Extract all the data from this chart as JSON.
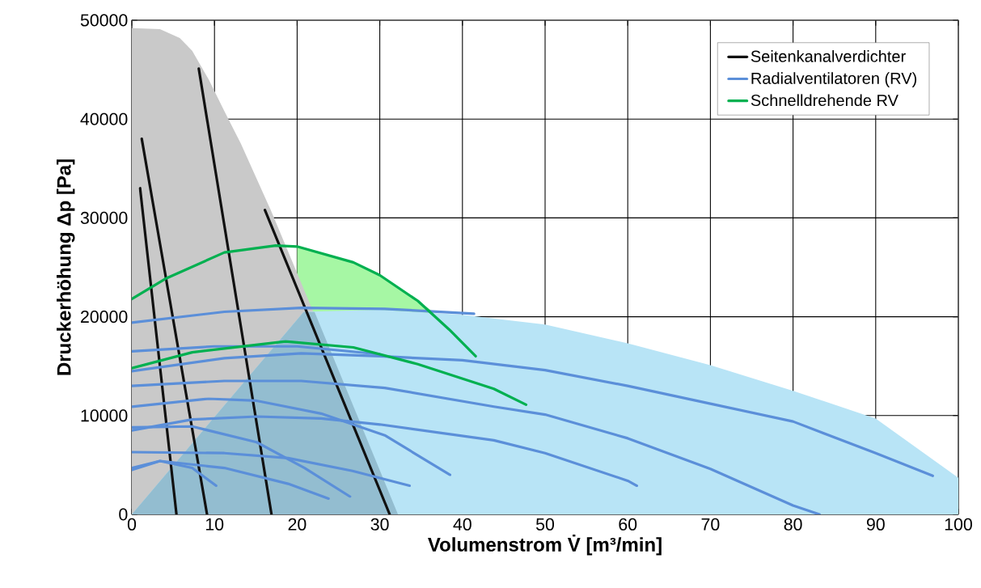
{
  "chart_data": {
    "type": "line",
    "xlabel": "Volumenstrom V̇ [m³/min]",
    "ylabel": "Druckerhöhung Δp [Pa]",
    "xlim": [
      0,
      100
    ],
    "ylim": [
      0,
      50000
    ],
    "xticks": [
      0,
      10,
      20,
      30,
      40,
      50,
      60,
      70,
      80,
      90,
      100
    ],
    "yticks": [
      0,
      10000,
      20000,
      30000,
      40000,
      50000
    ],
    "grid": true,
    "legend": "top right",
    "series": [
      {
        "type": "area",
        "color": "#a6f7a4",
        "x": [
          20,
          26.8,
          30,
          34.6,
          36.5
        ],
        "values": [
          27100,
          25500,
          24200,
          21600,
          20500
        ]
      },
      {
        "type": "area",
        "color": "#c9c9c9",
        "x": [
          0,
          3.4,
          5.8,
          7.3,
          9.3,
          11.2,
          13.2,
          16.8,
          32.2
        ],
        "values": [
          49200,
          49100,
          48200,
          46900,
          44000,
          40800,
          37500,
          30800,
          0
        ]
      },
      {
        "type": "area",
        "color": "#b8e4f6",
        "x": [
          0,
          20.8,
          30,
          40,
          50,
          60,
          70,
          80,
          90,
          100
        ],
        "values": [
          0,
          20500,
          20700,
          20200,
          19200,
          17300,
          15100,
          12500,
          9700,
          3700
        ]
      },
      {
        "type": "area",
        "color": "#93bdd0",
        "x": [
          0,
          20.8,
          22.1,
          32.2
        ],
        "values": [
          0,
          20500,
          20500,
          0
        ]
      },
      {
        "name": "Seitenkanalverdichter",
        "color": "#111111",
        "x": [
          1.0,
          5.4
        ],
        "values": [
          33000,
          0
        ]
      },
      {
        "color": "#111111",
        "x": [
          1.2,
          9.1
        ],
        "values": [
          38000,
          0
        ]
      },
      {
        "color": "#111111",
        "x": [
          8.1,
          16.9
        ],
        "values": [
          45100,
          0
        ]
      },
      {
        "color": "#111111",
        "x": [
          16.1,
          31.2
        ],
        "values": [
          30800,
          0
        ]
      },
      {
        "name": "Radialventilatoren (RV)",
        "color": "#5b8fd9",
        "x": [
          0,
          11.2,
          20.5,
          30.6,
          41.4
        ],
        "values": [
          19400,
          20500,
          20900,
          20800,
          20300
        ]
      },
      {
        "color": "#5b8fd9",
        "x": [
          0,
          10,
          20,
          30
        ],
        "values": [
          16500,
          17000,
          17000,
          16200
        ]
      },
      {
        "color": "#5b8fd9",
        "x": [
          0,
          11.2,
          20.5,
          30,
          40,
          50,
          60,
          70,
          80,
          90,
          96.9
        ],
        "values": [
          14500,
          15800,
          16300,
          16000,
          15600,
          14600,
          13000,
          11200,
          9400,
          6200,
          3900
        ]
      },
      {
        "color": "#5b8fd9",
        "x": [
          0,
          11.2,
          20.5,
          30.6,
          43.8,
          50,
          60,
          70,
          80,
          83.2
        ],
        "values": [
          13000,
          13500,
          13500,
          12800,
          10900,
          10100,
          7700,
          4600,
          900,
          0
        ]
      },
      {
        "color": "#5b8fd9",
        "x": [
          0,
          9.3,
          15.1,
          22.9,
          30.6,
          38.5
        ],
        "values": [
          10900,
          11700,
          11500,
          10200,
          8000,
          4000
        ]
      },
      {
        "color": "#5b8fd9",
        "x": [
          0,
          7.3,
          15.1,
          22.9,
          30,
          43.8,
          50,
          60,
          61.1
        ],
        "values": [
          8500,
          9600,
          9900,
          9700,
          9100,
          7500,
          6200,
          3400,
          2900
        ]
      },
      {
        "color": "#5b8fd9",
        "x": [
          0,
          7.3,
          15.1,
          20.9,
          26.4
        ],
        "values": [
          8800,
          8900,
          7300,
          4700,
          1800
        ]
      },
      {
        "color": "#5b8fd9",
        "x": [
          0,
          11.2,
          18.9,
          26.7,
          33.6
        ],
        "values": [
          6300,
          6200,
          5700,
          4400,
          2900
        ]
      },
      {
        "color": "#5b8fd9",
        "x": [
          0,
          3.4,
          11.2,
          18.9,
          23.8
        ],
        "values": [
          4700,
          5400,
          4700,
          3100,
          1600
        ]
      },
      {
        "color": "#5b8fd9",
        "x": [
          0,
          3.4,
          7.3,
          10.2
        ],
        "values": [
          4500,
          5400,
          4700,
          2900
        ]
      },
      {
        "name": "Schnelldrehende RV",
        "color": "#00b050",
        "x": [
          0,
          4.2,
          11.2,
          17.4,
          20,
          26.8,
          30,
          34.6,
          38.4,
          41.6
        ],
        "values": [
          21800,
          23900,
          26500,
          27200,
          27100,
          25500,
          24200,
          21600,
          18700,
          16000
        ]
      },
      {
        "color": "#00b050",
        "x": [
          0,
          7.3,
          18.6,
          26.8,
          34.6,
          43.8,
          47.7
        ],
        "values": [
          14800,
          16400,
          17500,
          16900,
          15200,
          12700,
          11100
        ]
      }
    ]
  }
}
